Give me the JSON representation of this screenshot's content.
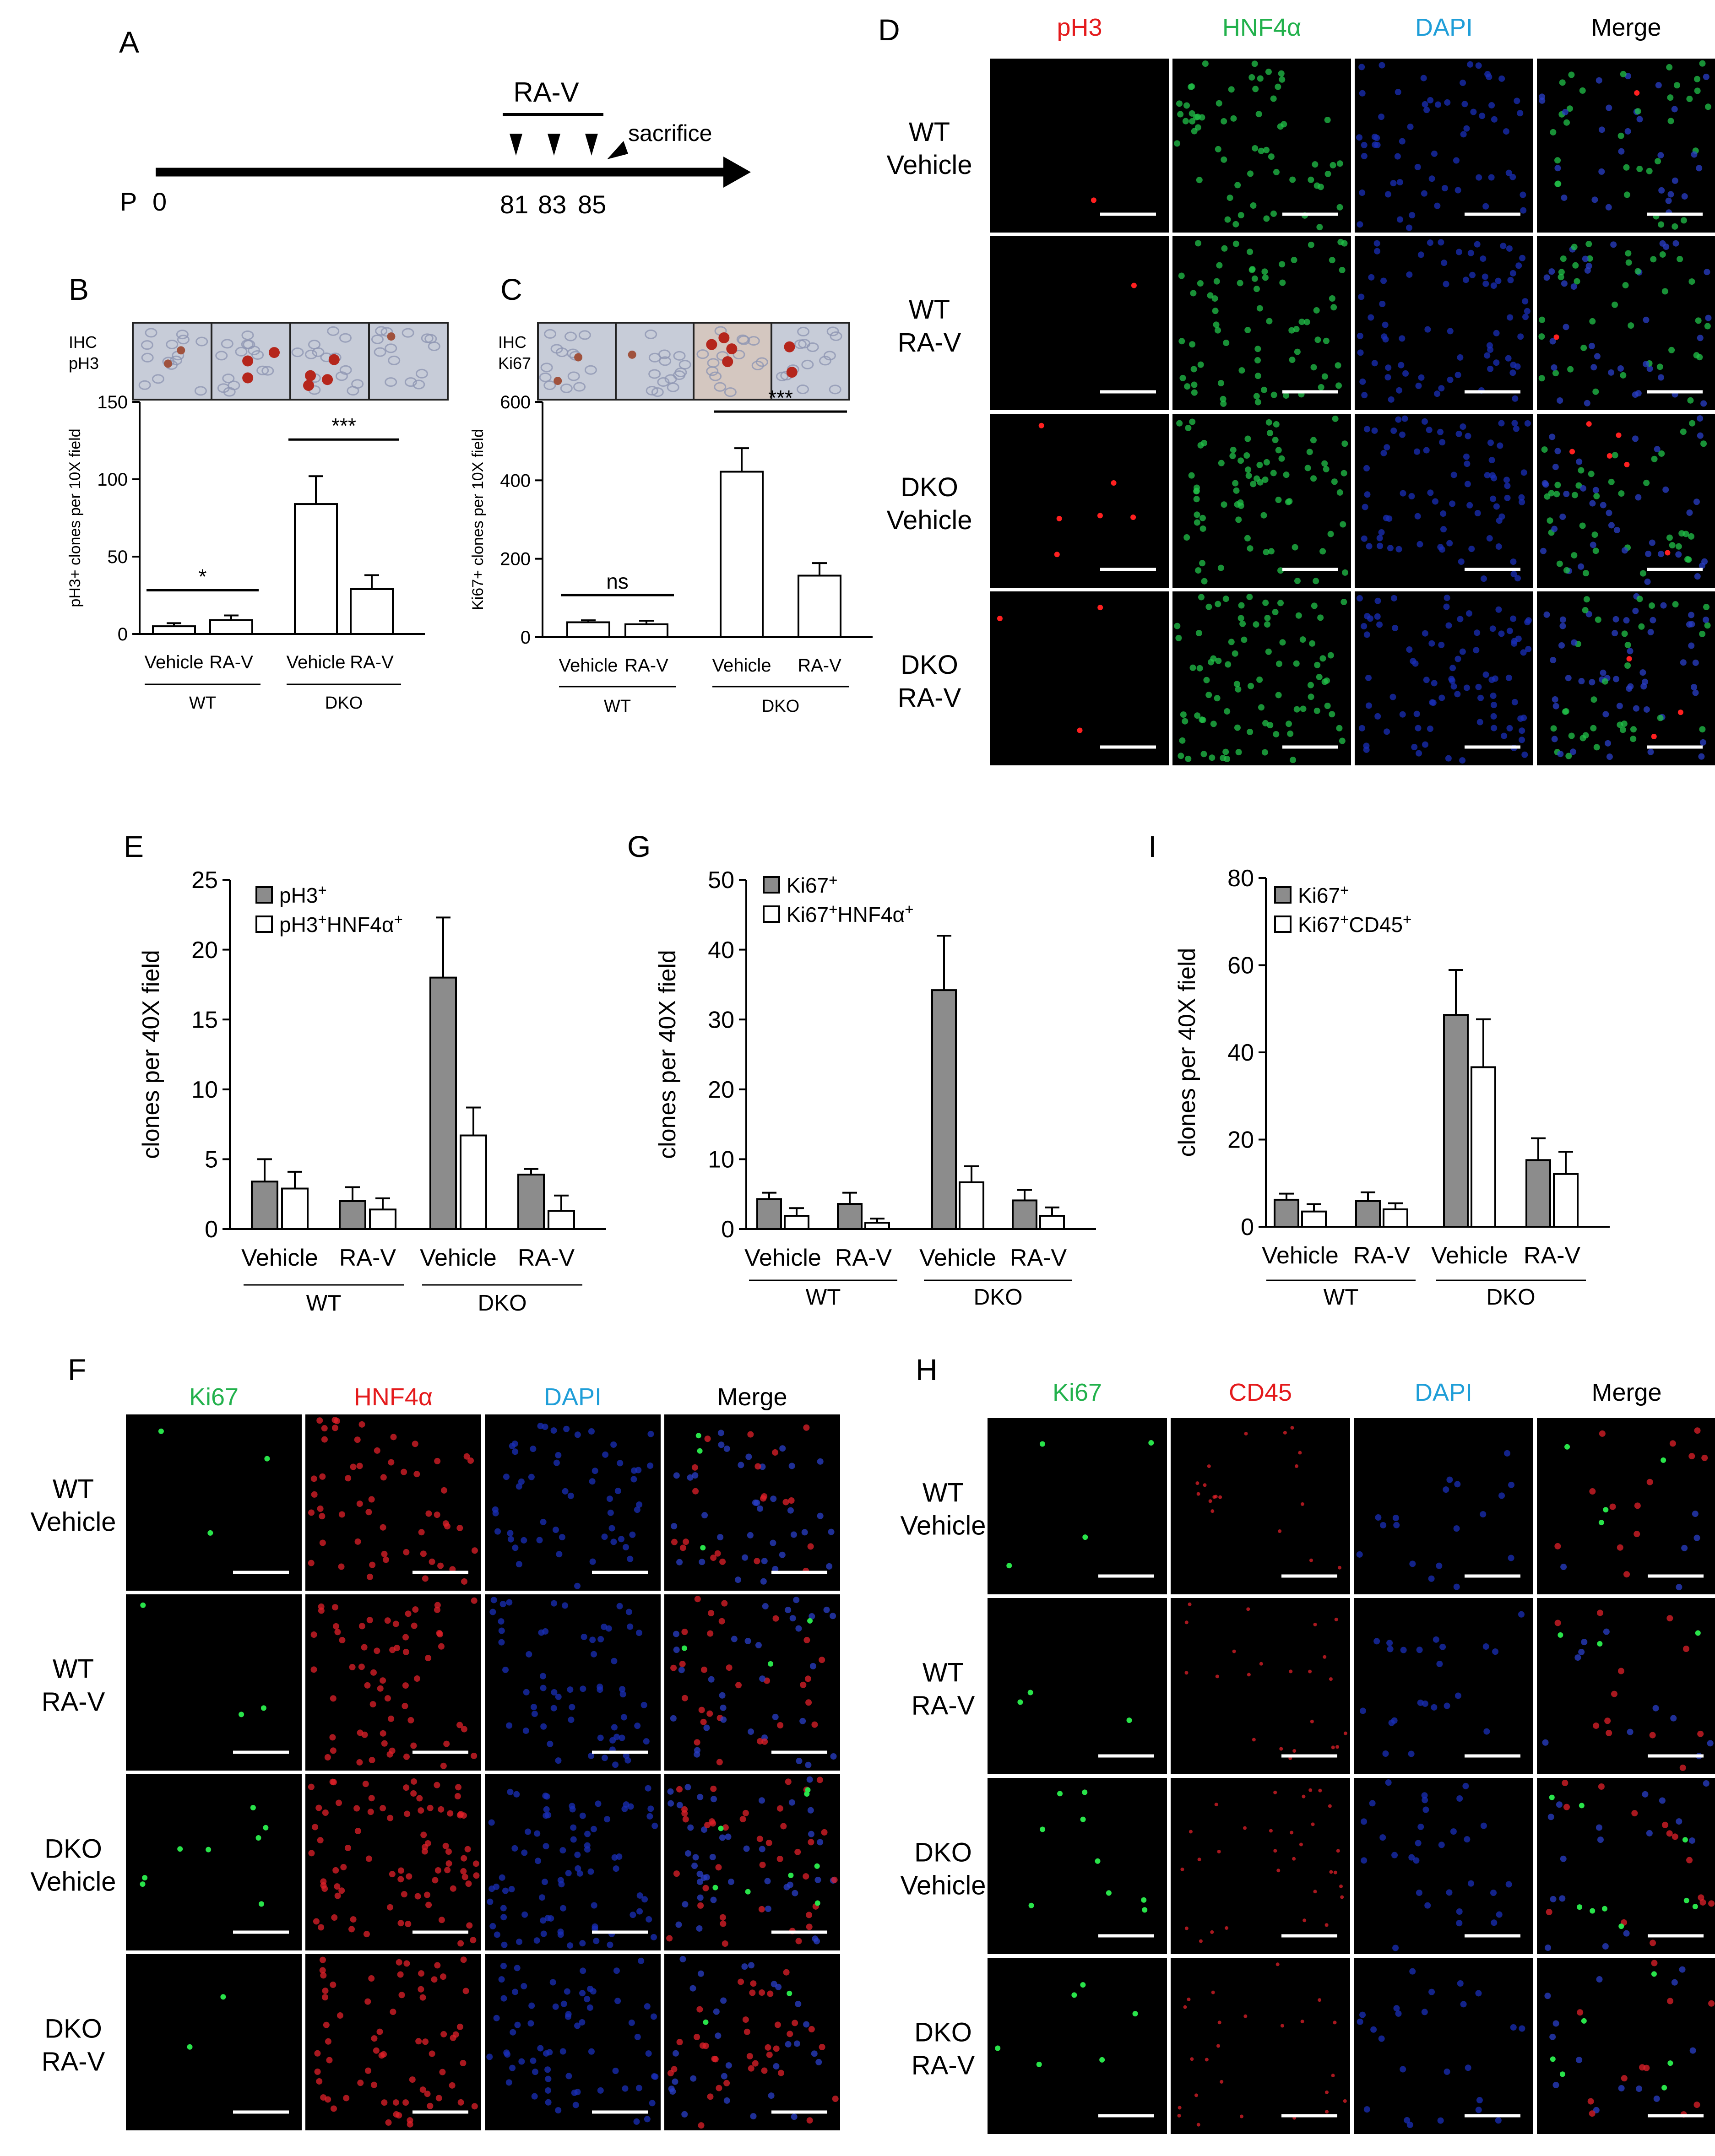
{
  "panel_letters": [
    "A",
    "B",
    "C",
    "D",
    "E",
    "F",
    "G",
    "H",
    "I"
  ],
  "colors": {
    "red": "#e41a1c",
    "green": "#22b14c",
    "blue": "#1f9ed8",
    "black": "#000000",
    "bar_fill_gray": "#8c8c8c",
    "bar_fill_white": "#ffffff",
    "micro_background": "#000000",
    "ihc_background": "#c7ccd8"
  },
  "timeline": {
    "start_prefix": "P",
    "start_label": "0",
    "treatment_label": "RA-V",
    "injection_days": [
      "81",
      "83",
      "85"
    ],
    "end_label": "sacrifice"
  },
  "ihc": [
    {
      "id": "B",
      "stain_line1": "IHC",
      "stain_line2": "pH3",
      "tiles": [
        {
          "cells": 2,
          "stain": "weak"
        },
        {
          "cells": 3,
          "stain": "strong"
        },
        {
          "cells": 4,
          "stain": "strong"
        },
        {
          "cells": 1,
          "stain": "weak"
        }
      ]
    },
    {
      "id": "C",
      "stain_line1": "IHC",
      "stain_line2": "Ki67",
      "tiles": [
        {
          "cells": 2,
          "stain": "weak"
        },
        {
          "cells": 1,
          "stain": "weak"
        },
        {
          "cells": 4,
          "stain": "strong"
        },
        {
          "cells": 2,
          "stain": "strong"
        }
      ]
    }
  ],
  "micrograph_panels": [
    {
      "id": "D",
      "channels": [
        "pH3",
        "HNF4α",
        "DAPI",
        "Merge"
      ],
      "channel_colors": [
        "#e41a1c",
        "#22b14c",
        "#1f9ed8",
        "#000000"
      ],
      "rows": [
        [
          "WT",
          "Vehicle"
        ],
        [
          "WT",
          "RA-V"
        ],
        [
          "DKO",
          "Vehicle"
        ],
        [
          "DKO",
          "RA-V"
        ]
      ],
      "marker_dot_color": "#ff2020",
      "nucleus_color": "#21c24a"
    },
    {
      "id": "F",
      "channels": [
        "Ki67",
        "HNF4α",
        "DAPI",
        "Merge"
      ],
      "channel_colors": [
        "#22b14c",
        "#e41a1c",
        "#1f9ed8",
        "#000000"
      ],
      "rows": [
        [
          "WT",
          "Vehicle"
        ],
        [
          "WT",
          "RA-V"
        ],
        [
          "DKO",
          "Vehicle"
        ],
        [
          "DKO",
          "RA-V"
        ]
      ],
      "marker_dot_color": "#29e34a",
      "nucleus_color": "#e0202a"
    },
    {
      "id": "H",
      "channels": [
        "Ki67",
        "CD45",
        "DAPI",
        "Merge"
      ],
      "channel_colors": [
        "#22b14c",
        "#e41a1c",
        "#1f9ed8",
        "#000000"
      ],
      "rows": [
        [
          "WT",
          "Vehicle"
        ],
        [
          "WT",
          "RA-V"
        ],
        [
          "DKO",
          "Vehicle"
        ],
        [
          "DKO",
          "RA-V"
        ]
      ],
      "marker_dot_color": "#29e34a",
      "nucleus_color": "#e0202a"
    }
  ],
  "chart_data": [
    {
      "id": "B",
      "type": "bar",
      "categories": [
        "Vehicle",
        "RA-V",
        "Vehicle",
        "RA-V"
      ],
      "groups": [
        "WT",
        "DKO"
      ],
      "series": [
        {
          "values": [
            5,
            9,
            84,
            29
          ],
          "errors": [
            2,
            3,
            18,
            9
          ]
        }
      ],
      "ylabel": "pH3+ clones per 10X field",
      "ylim": [
        0,
        150
      ],
      "yticks": [
        0,
        50,
        100,
        150
      ],
      "significance": [
        {
          "label": "*",
          "between": [
            0,
            1
          ]
        },
        {
          "label": "***",
          "between": [
            2,
            3
          ]
        }
      ]
    },
    {
      "id": "C",
      "type": "bar",
      "categories": [
        "Vehicle",
        "RA-V",
        "Vehicle",
        "RA-V"
      ],
      "groups": [
        "WT",
        "DKO"
      ],
      "series": [
        {
          "values": [
            38,
            33,
            422,
            157
          ],
          "errors": [
            5,
            9,
            60,
            32
          ]
        }
      ],
      "ylabel": "Ki67+ clones per 10X field",
      "ylim": [
        0,
        600
      ],
      "yticks": [
        0,
        200,
        400,
        600
      ],
      "significance": [
        {
          "label": "ns",
          "between": [
            0,
            1
          ]
        },
        {
          "label": "***",
          "between": [
            2,
            3
          ]
        }
      ]
    },
    {
      "id": "E",
      "type": "bar",
      "categories": [
        "Vehicle",
        "RA-V",
        "Vehicle",
        "RA-V"
      ],
      "groups": [
        "WT",
        "DKO"
      ],
      "series": [
        {
          "name": "pH3+",
          "name_parts": [
            [
              "pH3",
              ""
            ],
            [
              "+",
              "sup"
            ]
          ],
          "color": "#8c8c8c",
          "values": [
            3.4,
            2.0,
            18.0,
            3.9
          ],
          "errors": [
            1.6,
            1.0,
            4.3,
            0.4
          ]
        },
        {
          "name": "pH3+HNF4α+",
          "name_parts": [
            [
              "pH3",
              ""
            ],
            [
              "+",
              "sup"
            ],
            [
              "HNF4α",
              ""
            ],
            [
              "+",
              "sup"
            ]
          ],
          "color": "#ffffff",
          "values": [
            2.9,
            1.4,
            6.7,
            1.3
          ],
          "errors": [
            1.2,
            0.8,
            2.0,
            1.1
          ]
        }
      ],
      "ylabel": "clones per 40X field",
      "ylim": [
        0,
        25
      ],
      "yticks": [
        0,
        5,
        10,
        15,
        20,
        25
      ]
    },
    {
      "id": "G",
      "type": "bar",
      "categories": [
        "Vehicle",
        "RA-V",
        "Vehicle",
        "RA-V"
      ],
      "groups": [
        "WT",
        "DKO"
      ],
      "series": [
        {
          "name": "Ki67+",
          "name_parts": [
            [
              "Ki67",
              ""
            ],
            [
              "+",
              "sup"
            ]
          ],
          "color": "#8c8c8c",
          "values": [
            4.3,
            3.6,
            34.2,
            4.1
          ],
          "errors": [
            0.9,
            1.6,
            7.8,
            1.5
          ]
        },
        {
          "name": "Ki67+HNF4α+",
          "name_parts": [
            [
              "Ki67",
              ""
            ],
            [
              "+",
              "sup"
            ],
            [
              "HNF4α",
              ""
            ],
            [
              "+",
              "sup"
            ]
          ],
          "color": "#ffffff",
          "values": [
            1.9,
            0.9,
            6.7,
            1.9
          ],
          "errors": [
            1.1,
            0.6,
            2.3,
            1.2
          ]
        }
      ],
      "ylabel": "clones per 40X field",
      "ylim": [
        0,
        50
      ],
      "yticks": [
        0,
        10,
        20,
        30,
        40,
        50
      ]
    },
    {
      "id": "I",
      "type": "bar",
      "categories": [
        "Vehicle",
        "RA-V",
        "Vehicle",
        "RA-V"
      ],
      "groups": [
        "WT",
        "DKO"
      ],
      "series": [
        {
          "name": "Ki67+",
          "name_parts": [
            [
              "Ki67",
              ""
            ],
            [
              "+",
              "sup"
            ]
          ],
          "color": "#8c8c8c",
          "values": [
            6.2,
            5.9,
            48.6,
            15.3
          ],
          "errors": [
            1.4,
            2.0,
            10.3,
            5.0
          ]
        },
        {
          "name": "Ki67+CD45+",
          "name_parts": [
            [
              "Ki67",
              ""
            ],
            [
              "+",
              "sup"
            ],
            [
              "CD45",
              ""
            ],
            [
              "+",
              "sup"
            ]
          ],
          "color": "#ffffff",
          "values": [
            3.5,
            4.0,
            36.6,
            12.1
          ],
          "errors": [
            1.7,
            1.4,
            11.0,
            5.1
          ]
        }
      ],
      "ylabel": "clones per 40X field",
      "ylim": [
        0,
        80
      ],
      "yticks": [
        0,
        20,
        40,
        60,
        80
      ]
    }
  ]
}
